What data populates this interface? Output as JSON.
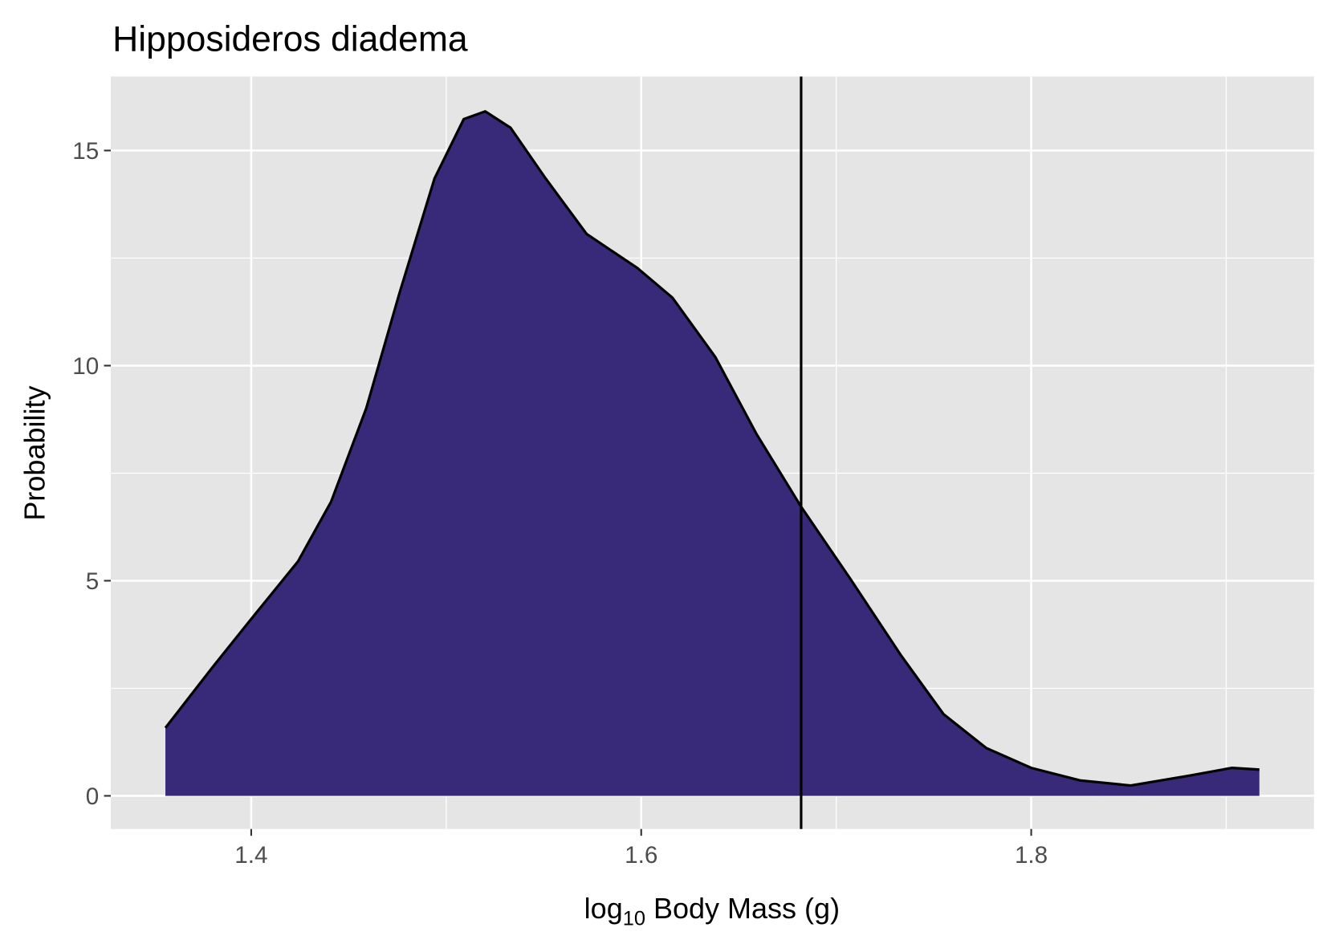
{
  "chart_data": {
    "type": "area",
    "title": "Hipposideros diadema",
    "xlabel": [
      "log",
      "10",
      " Body Mass (g)"
    ],
    "ylabel": "Probability",
    "x": [
      1.356,
      1.38,
      1.4,
      1.424,
      1.441,
      1.459,
      1.476,
      1.494,
      1.509,
      1.52,
      1.533,
      1.551,
      1.572,
      1.598,
      1.616,
      1.638,
      1.659,
      1.682,
      1.707,
      1.733,
      1.755,
      1.777,
      1.8,
      1.825,
      1.851,
      1.881,
      1.903,
      1.917
    ],
    "values": [
      1.58,
      2.98,
      4.11,
      5.45,
      6.84,
      9.01,
      11.68,
      14.35,
      15.73,
      15.91,
      15.53,
      14.35,
      13.06,
      12.27,
      11.58,
      10.2,
      8.42,
      6.72,
      5.06,
      3.28,
      1.9,
      1.11,
      0.65,
      0.36,
      0.24,
      0.47,
      0.65,
      0.61
    ],
    "color": "#382a78",
    "vline": 1.682,
    "xlim": [
      1.328,
      1.945
    ],
    "xticks": [
      1.4,
      1.6,
      1.8
    ],
    "ylim": [
      -0.77,
      16.72
    ],
    "yticks": [
      0,
      5,
      10,
      15
    ],
    "grid": true
  }
}
